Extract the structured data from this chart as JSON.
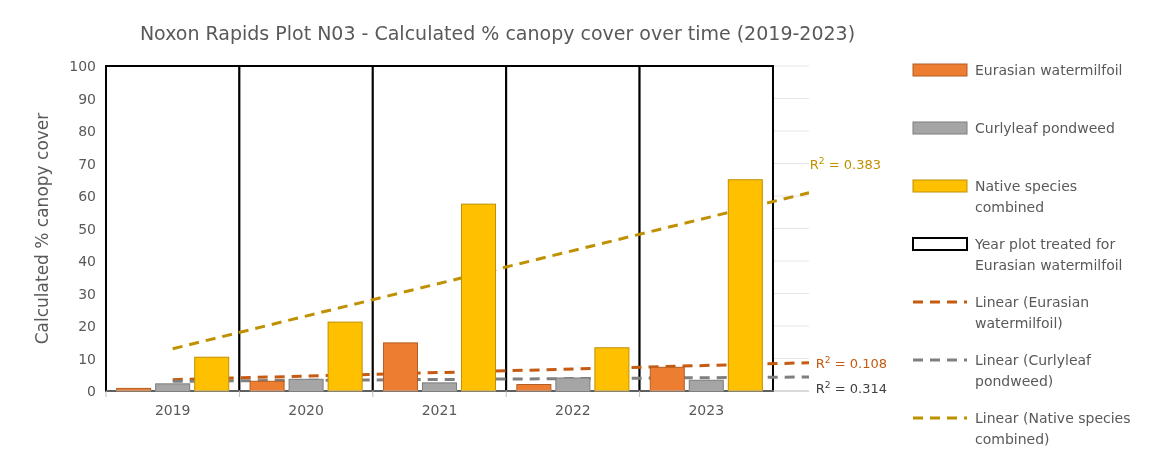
{
  "chart_data": {
    "type": "bar",
    "title": "Noxon Rapids Plot N03 - Calculated % canopy cover over time (2019-2023)",
    "ylabel": "Calculated % canopy cover",
    "x": [
      2019,
      2020,
      2021,
      2022,
      2023
    ],
    "xlim": [
      2018.5,
      2023.77
    ],
    "xticks": [
      2019,
      2020,
      2021,
      2022,
      2023
    ],
    "ylim": [
      0,
      100
    ],
    "yticks": [
      0,
      10,
      20,
      30,
      40,
      50,
      60,
      70,
      80,
      90,
      100
    ],
    "tick_labels": "xy",
    "grid": "y",
    "legend": "right",
    "series": [
      {
        "name": "Eurasian watermilfoil",
        "color": "#ed7d31",
        "values": [
          0.8,
          3,
          14.8,
          2,
          7.3
        ]
      },
      {
        "name": "Curlyleaf pondweed",
        "color": "#a5a5a5",
        "values": [
          2.2,
          3.6,
          2.5,
          4,
          3.3
        ]
      },
      {
        "name": "Native species combined",
        "color": "#ffc000",
        "values": [
          10.4,
          21.2,
          57.5,
          13.3,
          65
        ]
      },
      {
        "name": "Year plot treated for Eurasian watermilfoil",
        "color": "#ffffff",
        "x": [
          2019,
          2020,
          2021,
          2022,
          2023
        ],
        "values": [
          100,
          100,
          100,
          100,
          100
        ]
      },
      {
        "name": "Linear (Eurasian watermilfoil)",
        "type": "line",
        "line_style": "dashed",
        "color": "#c55a11",
        "x": [
          2019,
          2023.77
        ],
        "values": [
          3.5,
          8.7
        ]
      },
      {
        "name": "Linear (Curlyleaf pondweed)",
        "type": "line",
        "line_style": "dashed",
        "color": "#7f7f7f",
        "x": [
          2019,
          2023.77
        ],
        "values": [
          3.0,
          4.3
        ]
      },
      {
        "name": "Linear (Native species combined)",
        "type": "line",
        "line_style": "dashed",
        "color": "#bf9000",
        "x": [
          2019,
          2023.77
        ],
        "values": [
          13,
          61
        ]
      }
    ],
    "annotations": [
      "R$^{2}$ = 0.108",
      "R$^{2}$ = 0.314",
      "R$^{2}$ = 0.383"
    ]
  }
}
